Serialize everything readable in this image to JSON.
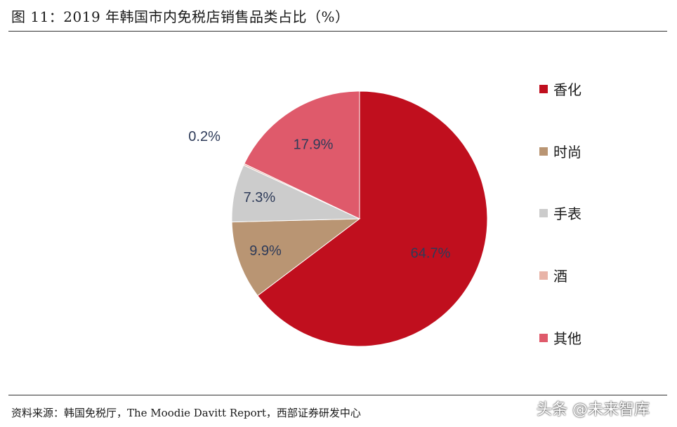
{
  "header": {
    "title": "图 11：2019 年韩国市内免税店销售品类占比（%）"
  },
  "footer": {
    "source": "资料来源：韩国免税厅，The Moodie Davitt Report，西部证券研发中心",
    "watermark": "头条 @未来智库"
  },
  "chart_data": {
    "type": "pie",
    "categories": [
      "香化",
      "时尚",
      "手表",
      "酒",
      "其他"
    ],
    "values": [
      64.7,
      9.9,
      7.3,
      0.2,
      17.9
    ],
    "value_labels": [
      "64.7%",
      "9.9%",
      "7.3%",
      "0.2%",
      "17.9%"
    ],
    "colors": [
      "#c00f1e",
      "#b99573",
      "#cccccc",
      "#e8b4a8",
      "#df5a6b"
    ],
    "start": "12 o'clock",
    "direction": "clockwise",
    "legend_position": "right"
  }
}
